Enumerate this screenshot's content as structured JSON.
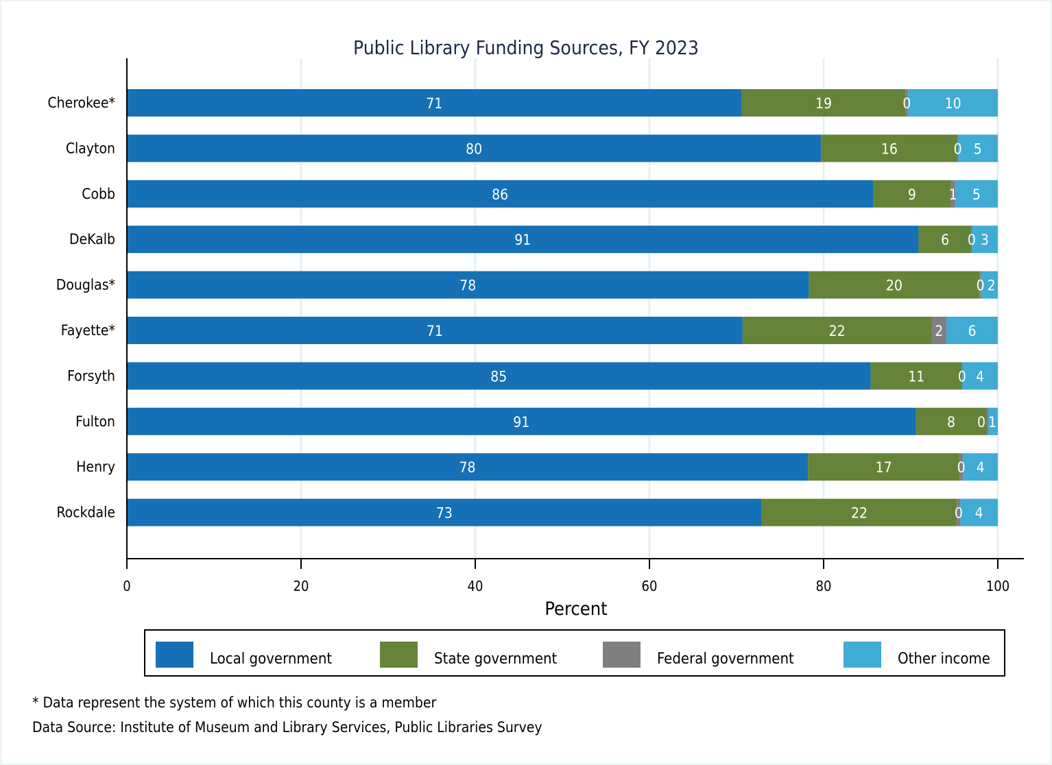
{
  "chart_data": {
    "type": "bar",
    "orientation": "horizontal",
    "stacked": true,
    "title": "Public Library Funding Sources, FY 2023",
    "xlabel": "Percent",
    "ylabel": "",
    "xlim": [
      0,
      100
    ],
    "xticks": [
      0,
      20,
      40,
      60,
      80,
      100
    ],
    "grid": true,
    "legend_position": "bottom",
    "categories": [
      "Cherokee*",
      "Clayton",
      "Cobb",
      "DeKalb",
      "Douglas*",
      "Fayette*",
      "Forsyth",
      "Fulton",
      "Henry",
      "Rockdale"
    ],
    "series": [
      {
        "name": "Local government",
        "color": "#1570b5",
        "values": [
          70.6,
          79.7,
          85.7,
          90.9,
          78.3,
          70.7,
          85.4,
          90.6,
          78.2,
          72.9
        ],
        "labels": [
          "71",
          "80",
          "86",
          "91",
          "78",
          "71",
          "85",
          "91",
          "78",
          "73"
        ]
      },
      {
        "name": "State government",
        "color": "#66833a",
        "values": [
          18.8,
          15.7,
          8.9,
          6.1,
          19.6,
          21.7,
          10.5,
          8.1,
          17.4,
          22.4
        ],
        "labels": [
          "19",
          "16",
          "9",
          "6",
          "20",
          "22",
          "11",
          "8",
          "17",
          "22"
        ]
      },
      {
        "name": "Federal government",
        "color": "#7f7e81",
        "values": [
          0.3,
          0.0,
          0.5,
          0.0,
          0.2,
          1.7,
          0.0,
          0.2,
          0.4,
          0.4
        ],
        "labels": [
          "0",
          "0",
          "1",
          "0",
          "0",
          "2",
          "0",
          "0",
          "0",
          "0"
        ]
      },
      {
        "name": "Other income",
        "color": "#40abd3",
        "values": [
          10.3,
          4.6,
          4.9,
          3.0,
          1.9,
          5.9,
          4.1,
          1.1,
          4.0,
          4.3
        ],
        "labels": [
          "10",
          "5",
          "5",
          "3",
          "2",
          "6",
          "4",
          "1",
          "4",
          "4"
        ]
      }
    ]
  },
  "footnotes": {
    "asterisk_note": "* Data represent the system of which this county is a member",
    "source": "Data Source: Institute of Museum and Library Services, Public Libraries Survey"
  }
}
